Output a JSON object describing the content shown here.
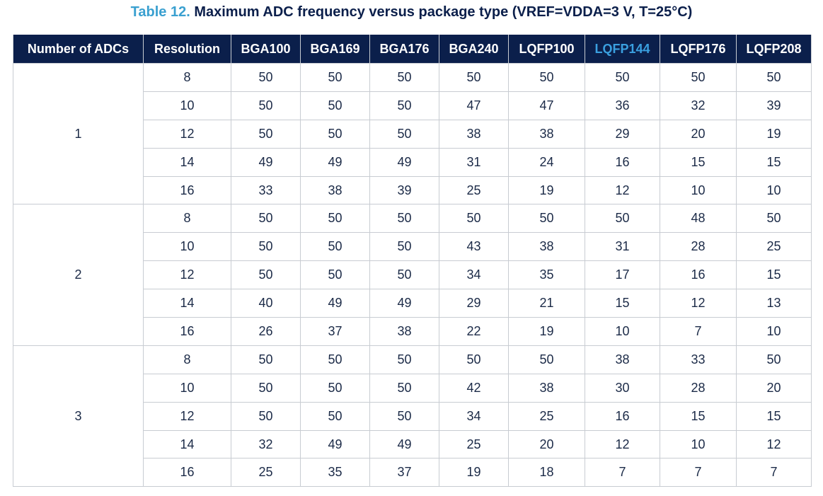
{
  "title": {
    "label": "Table 12.",
    "text": "Maximum ADC frequency versus package type (VREF=VDDA=3 V, T=25°C)"
  },
  "table": {
    "header": [
      "Number of ADCs",
      "Resolution",
      "BGA100",
      "BGA169",
      "BGA176",
      "BGA240",
      "LQFP100",
      "LQFP144",
      "LQFP176",
      "LQFP208"
    ],
    "groups": [
      {
        "adcs": 1,
        "rows": [
          [
            8,
            50,
            50,
            50,
            50,
            50,
            50,
            50,
            50
          ],
          [
            10,
            50,
            50,
            50,
            47,
            47,
            36,
            32,
            39
          ],
          [
            12,
            50,
            50,
            50,
            38,
            38,
            29,
            20,
            19
          ],
          [
            14,
            49,
            49,
            49,
            31,
            24,
            16,
            15,
            15
          ],
          [
            16,
            33,
            38,
            39,
            25,
            19,
            12,
            10,
            10
          ]
        ]
      },
      {
        "adcs": 2,
        "rows": [
          [
            8,
            50,
            50,
            50,
            50,
            50,
            50,
            48,
            50
          ],
          [
            10,
            50,
            50,
            50,
            43,
            38,
            31,
            28,
            25
          ],
          [
            12,
            50,
            50,
            50,
            34,
            35,
            17,
            16,
            15
          ],
          [
            14,
            40,
            49,
            49,
            29,
            21,
            15,
            12,
            13
          ],
          [
            16,
            26,
            37,
            38,
            22,
            19,
            10,
            7,
            10
          ]
        ]
      },
      {
        "adcs": 3,
        "rows": [
          [
            8,
            50,
            50,
            50,
            50,
            50,
            38,
            33,
            50
          ],
          [
            10,
            50,
            50,
            50,
            42,
            38,
            30,
            28,
            20
          ],
          [
            12,
            50,
            50,
            50,
            34,
            25,
            16,
            15,
            15
          ],
          [
            14,
            32,
            49,
            49,
            25,
            20,
            12,
            10,
            12
          ],
          [
            16,
            25,
            35,
            37,
            19,
            18,
            7,
            7,
            7
          ]
        ]
      }
    ]
  }
}
